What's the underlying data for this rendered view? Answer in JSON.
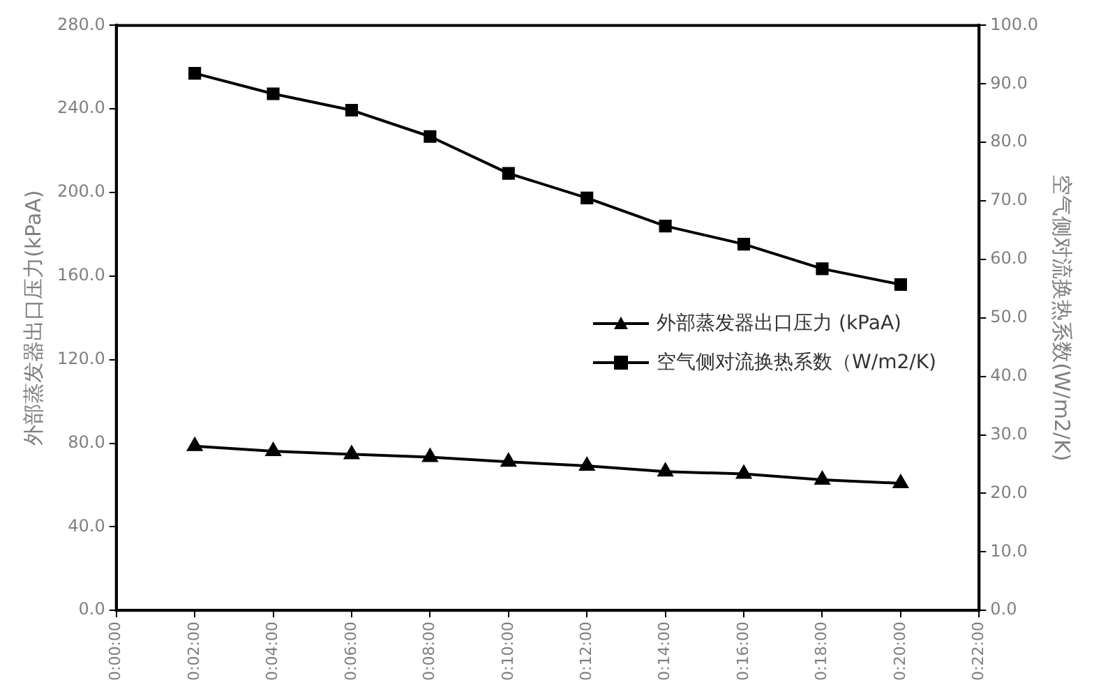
{
  "chart_data": {
    "type": "line",
    "xlabel": null,
    "ylabel": "外部蒸发器出口压力(kPaA)",
    "y2label": "空气侧对流换热系数(W/m2/K)",
    "categories": [
      "0:00:00",
      "0:02:00",
      "0:04:00",
      "0:06:00",
      "0:08:00",
      "0:10:00",
      "0:12:00",
      "0:14:00",
      "0:16:00",
      "0:18:00",
      "0:20:00",
      "0:22:00"
    ],
    "series": [
      {
        "name": "外部蒸发器出口压力 (kPaA)",
        "color": "#000000",
        "marker": "triangle",
        "values": [
          null,
          78.6,
          76.2,
          74.7,
          73.3,
          71.1,
          69.2,
          66.4,
          65.3,
          62.5,
          60.8,
          null
        ]
      },
      {
        "name": "空气侧对流换热系数（W/m2/K)",
        "color": "#000000",
        "marker": "square",
        "axis": "y2",
        "values": [
          null,
          91.8,
          88.3,
          85.5,
          81.0,
          74.7,
          70.5,
          65.7,
          62.6,
          58.4,
          55.7,
          null
        ]
      }
    ],
    "ylim": [
      0,
      280
    ],
    "yticks": [
      {
        "value": 0,
        "label": "0.0"
      },
      {
        "value": 40,
        "label": "40.0"
      },
      {
        "value": 80,
        "label": "80.0"
      },
      {
        "value": 120,
        "label": "120.0"
      },
      {
        "value": 160,
        "label": "160.0"
      },
      {
        "value": 200,
        "label": "200.0"
      },
      {
        "value": 240,
        "label": "240.0"
      },
      {
        "value": 280,
        "label": "280.0"
      }
    ],
    "y2lim": [
      0,
      100
    ],
    "y2ticks": [
      {
        "value": 0,
        "label": "0.0"
      },
      {
        "value": 10,
        "label": "10.0"
      },
      {
        "value": 20,
        "label": "20.0"
      },
      {
        "value": 30,
        "label": "30.0"
      },
      {
        "value": 40,
        "label": "40.0"
      },
      {
        "value": 50,
        "label": "50.0"
      },
      {
        "value": 60,
        "label": "60.0"
      },
      {
        "value": 70,
        "label": "70.0"
      },
      {
        "value": 80,
        "label": "80.0"
      },
      {
        "value": 90,
        "label": "90.0"
      },
      {
        "value": 100,
        "label": "100.0"
      }
    ],
    "grid": false,
    "legend": "right",
    "line_style": "solid"
  }
}
